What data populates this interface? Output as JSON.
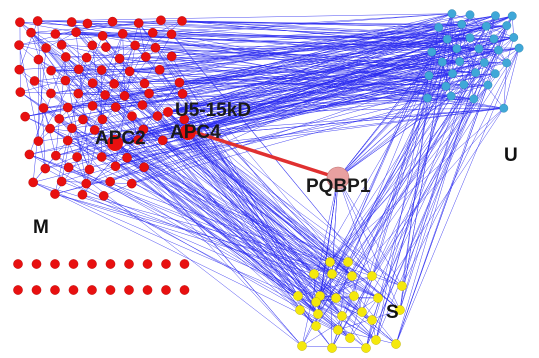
{
  "labels": {
    "hub": "PQBP1",
    "apc2": "APC2",
    "apc4": "APC4",
    "u5": "U5-15kD"
  },
  "groups": {
    "m": "M",
    "u": "U",
    "s": "S"
  },
  "colors": {
    "m_nodes": "#e81010",
    "u_nodes": "#3fa7d8",
    "s_nodes": "#f4e80c",
    "hub_node": "#e8a0a0",
    "edges": "#2a2af0",
    "hub_edge": "#e03030"
  }
}
